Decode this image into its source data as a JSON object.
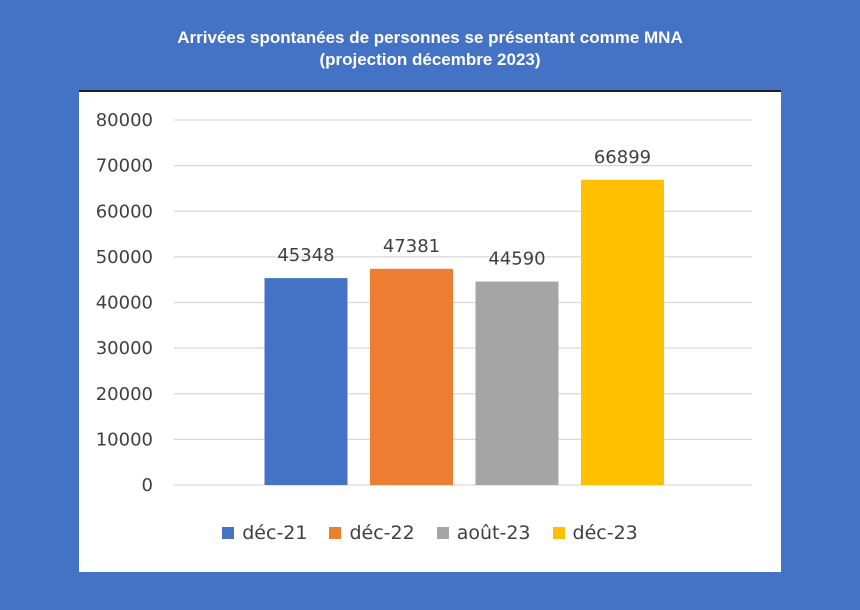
{
  "header": {
    "title_line1": "Arrivées spontanées de personnes se présentant comme MNA",
    "title_line2": "(projection décembre 2023)"
  },
  "chart_data": {
    "type": "bar",
    "categories": [
      "déc-21",
      "déc-22",
      "août-23",
      "déc-23"
    ],
    "values": [
      45348,
      47381,
      44590,
      66899
    ],
    "colors": [
      "#4472C4",
      "#ED7D31",
      "#A5A5A5",
      "#FFC000"
    ],
    "ylim": [
      0,
      80000
    ],
    "yticks": [
      0,
      10000,
      20000,
      30000,
      40000,
      50000,
      60000,
      70000,
      80000
    ],
    "grid": true,
    "legend_position": "bottom",
    "data_labels": true
  }
}
